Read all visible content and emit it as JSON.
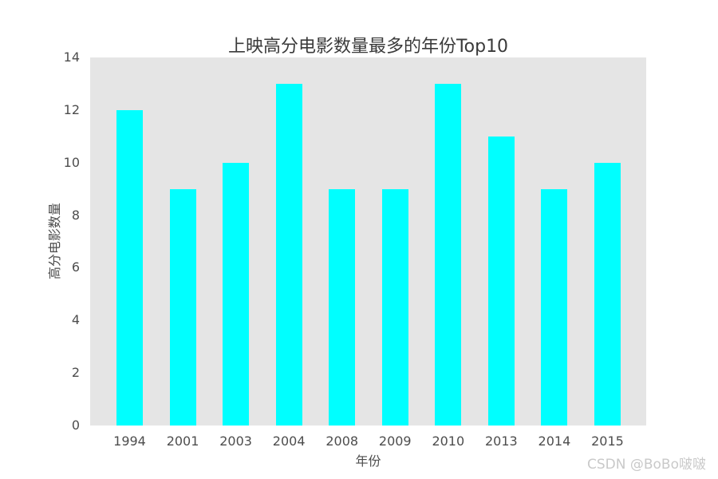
{
  "watermark": {
    "text": "CSDN @BoBo啵啵"
  },
  "chart_data": {
    "type": "bar",
    "title": "上映高分电影数量最多的年份Top10",
    "categories": [
      "1994",
      "2001",
      "2003",
      "2004",
      "2008",
      "2009",
      "2010",
      "2013",
      "2014",
      "2015"
    ],
    "values": [
      12,
      9,
      10,
      13,
      9,
      9,
      13,
      11,
      9,
      10
    ],
    "xlabel": "年份",
    "ylabel": "高分电影数量",
    "ylim": [
      0,
      14
    ],
    "yticks": [
      0,
      2,
      4,
      6,
      8,
      10,
      12,
      14
    ],
    "grid": false,
    "legend": "none",
    "bar_color": "#00ffff",
    "plot_bg_color": "#e5e5e5",
    "figure_bg_color": "#ffffff",
    "text_color": "#4d4d4d",
    "watermark_color": "#c9c9c9"
  }
}
